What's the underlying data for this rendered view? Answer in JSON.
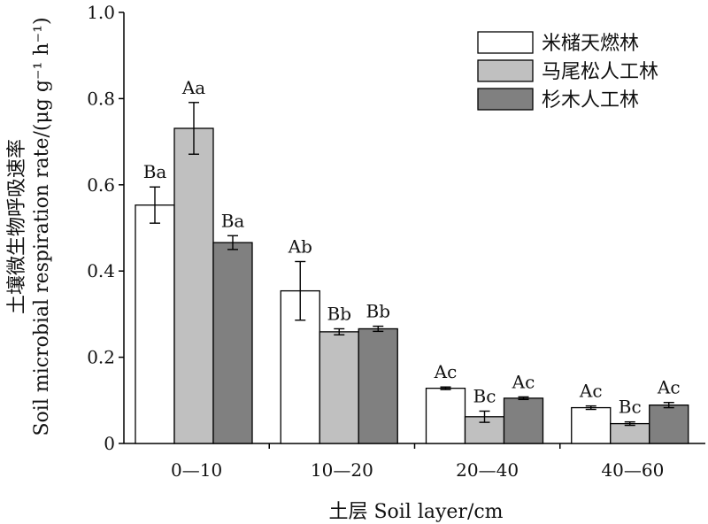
{
  "chart_data": {
    "type": "bar",
    "categories": [
      "0—10",
      "10—20",
      "20—40",
      "40—60"
    ],
    "series": [
      {
        "name": "米槠天燃林",
        "color": "#ffffff",
        "values": [
          0.553,
          0.354,
          0.128,
          0.083
        ],
        "errors": [
          0.042,
          0.068,
          0.003,
          0.004
        ],
        "sig": [
          "Ba",
          "Ab",
          "Ac",
          "Ac"
        ]
      },
      {
        "name": "马尾松人工林",
        "color": "#c0c0c0",
        "values": [
          0.731,
          0.259,
          0.062,
          0.046
        ],
        "errors": [
          0.06,
          0.007,
          0.013,
          0.004
        ],
        "sig": [
          "Aa",
          "Bb",
          "Bc",
          "Bc"
        ]
      },
      {
        "name": "杉木人工林",
        "color": "#808080",
        "values": [
          0.466,
          0.266,
          0.105,
          0.089
        ],
        "errors": [
          0.016,
          0.006,
          0.003,
          0.006
        ],
        "sig": [
          "Ba",
          "Bb",
          "Ac",
          "Ac"
        ]
      }
    ],
    "yticks": [
      "0",
      "0.2",
      "0.4",
      "0.6",
      "0.8",
      "1.0"
    ],
    "ylim": [
      0,
      1.0
    ],
    "xlabel": "土层 Soil layer/cm",
    "ylabel": "土壤微生物呼吸速率",
    "ylabel_en": "Soil microbial respiration rate/(μg g⁻¹ h⁻¹)",
    "legend_position": "top-right"
  }
}
